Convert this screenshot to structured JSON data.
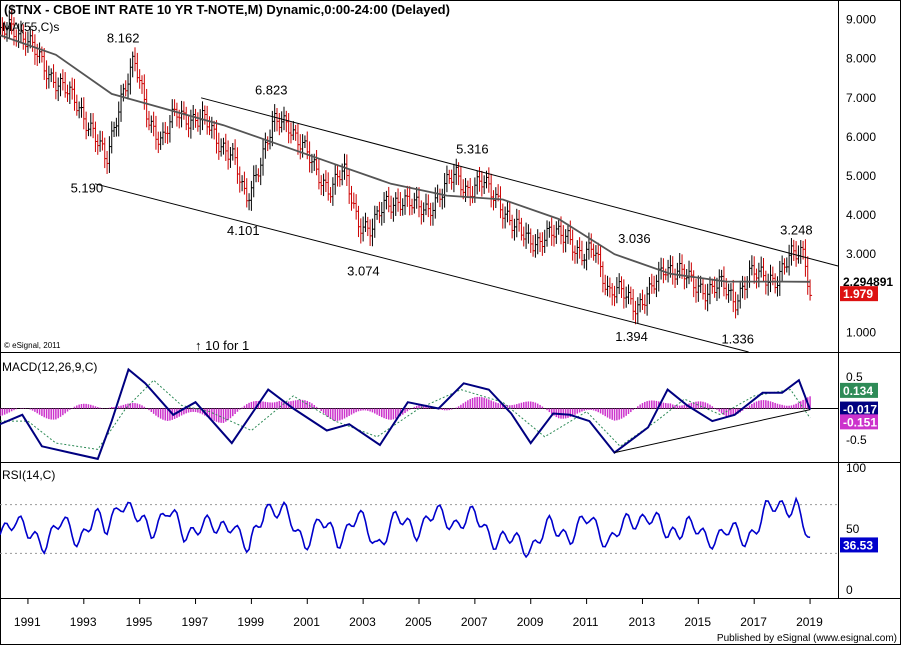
{
  "title": "($TNX - CBOE INT RATE 10 YR T-NOTE,M) Dynamic,0:00-24:00 (Delayed)",
  "ma_label": "MA(55,C)s",
  "copyright": "© eSignal, 2011",
  "split_note": "↑ 10 for 1",
  "footer": "Published by eSignal (www.esignal.com)",
  "colors": {
    "up": "#000000",
    "down": "#cc0000",
    "ma": "#555555",
    "macd": "#000080",
    "signal": "#2e8b57",
    "hist": "#cc33cc",
    "rsi": "#0000cc"
  },
  "chart_data": [
    {
      "type": "line",
      "name": "price",
      "title": "($TNX - CBOE INT RATE 10 YR T-NOTE,M) Dynamic,0:00-24:00 (Delayed)",
      "ylim": [
        0.5,
        9.5
      ],
      "yticks": [
        "9.000",
        "8.000",
        "7.000",
        "6.000",
        "5.000",
        "4.000",
        "3.000",
        "2.000",
        "1.000"
      ],
      "xlim": [
        1990.0,
        2020.0
      ],
      "xticks": [
        "1991",
        "1993",
        "1995",
        "1997",
        "1999",
        "2001",
        "2003",
        "2005",
        "2007",
        "2009",
        "2011",
        "2013",
        "2015",
        "2017",
        "2019"
      ],
      "series": [
        {
          "name": "Close",
          "x": [
            1990.0,
            1990.3,
            1990.8,
            1991.3,
            1991.8,
            1992.3,
            1992.8,
            1993.3,
            1993.8,
            1994.3,
            1994.8,
            1995.3,
            1995.8,
            1996.3,
            1996.8,
            1997.3,
            1997.8,
            1998.3,
            1998.8,
            1999.3,
            1999.8,
            2000.3,
            2000.8,
            2001.3,
            2001.8,
            2002.3,
            2002.8,
            2003.3,
            2003.8,
            2004.3,
            2004.8,
            2005.3,
            2005.8,
            2006.3,
            2006.8,
            2007.3,
            2007.8,
            2008.3,
            2008.8,
            2009.3,
            2009.8,
            2010.3,
            2010.8,
            2011.3,
            2011.8,
            2012.3,
            2012.8,
            2013.3,
            2013.8,
            2014.3,
            2014.8,
            2015.3,
            2015.8,
            2016.3,
            2016.8,
            2017.3,
            2017.8,
            2018.3,
            2018.8,
            2019.0
          ],
          "values": [
            8.5,
            8.9,
            8.6,
            8.1,
            7.6,
            7.2,
            6.8,
            6.2,
            5.3,
            7.0,
            7.9,
            6.5,
            5.9,
            6.6,
            6.5,
            6.4,
            5.9,
            5.6,
            4.3,
            5.4,
            6.3,
            6.4,
            5.8,
            5.1,
            4.7,
            5.1,
            3.9,
            3.6,
            4.3,
            4.4,
            4.2,
            4.2,
            4.5,
            5.1,
            4.6,
            4.8,
            4.5,
            3.7,
            3.5,
            3.3,
            3.5,
            3.6,
            2.8,
            3.2,
            2.0,
            2.0,
            1.7,
            2.0,
            2.7,
            2.6,
            2.2,
            2.1,
            2.2,
            1.8,
            2.5,
            2.4,
            2.4,
            2.9,
            3.1,
            1.979
          ]
        },
        {
          "name": "MA(55,C)s",
          "x": [
            1990.0,
            1992.0,
            1994.0,
            1996.0,
            1998.0,
            2000.0,
            2002.0,
            2004.0,
            2006.0,
            2008.0,
            2010.0,
            2012.0,
            2014.0,
            2016.0,
            2018.0,
            2019.0
          ],
          "values": [
            8.6,
            8.1,
            7.1,
            6.7,
            6.3,
            5.8,
            5.3,
            4.8,
            4.5,
            4.4,
            3.9,
            3.0,
            2.5,
            2.3,
            2.3,
            2.294891
          ]
        },
        {
          "name": "Channel upper",
          "x": [
            1997.2,
            2020.0
          ],
          "values": [
            7.0,
            2.7
          ]
        },
        {
          "name": "Channel lower",
          "x": [
            1993.4,
            2016.8
          ],
          "values": [
            4.8,
            0.5
          ]
        }
      ],
      "annotations": [
        {
          "label": "8.162",
          "x": 1994.4,
          "y": 8.162
        },
        {
          "label": "5.190",
          "x": 1993.1,
          "y": 5.19
        },
        {
          "label": "6.823",
          "x": 1999.7,
          "y": 6.823
        },
        {
          "label": "4.101",
          "x": 1998.7,
          "y": 4.101
        },
        {
          "label": "3.074",
          "x": 2003.0,
          "y": 3.074
        },
        {
          "label": "5.316",
          "x": 2006.9,
          "y": 5.316
        },
        {
          "label": "1.394",
          "x": 2012.6,
          "y": 1.394
        },
        {
          "label": "3.036",
          "x": 2012.7,
          "y": 3.036
        },
        {
          "label": "1.336",
          "x": 2016.4,
          "y": 1.336
        },
        {
          "label": "3.248",
          "x": 2018.5,
          "y": 3.248
        }
      ],
      "last_values": {
        "ma": "2.294891",
        "close": "1.979"
      }
    },
    {
      "type": "line",
      "name": "macd",
      "title": "MACD(12,26,9,C)",
      "ylim": [
        -0.85,
        0.85
      ],
      "yticks": [
        "0.5",
        "-0.5"
      ],
      "series": [
        {
          "name": "MACD",
          "x": [
            1990.0,
            1990.8,
            1991.5,
            1992.5,
            1993.5,
            1994.0,
            1994.6,
            1995.2,
            1996.2,
            1997.0,
            1998.3,
            1999.6,
            2000.5,
            2001.7,
            2002.5,
            2003.6,
            2004.6,
            2005.7,
            2006.6,
            2007.5,
            2008.3,
            2009.0,
            2009.8,
            2010.4,
            2011.1,
            2012.0,
            2013.2,
            2013.9,
            2014.6,
            2015.5,
            2016.3,
            2017.3,
            2018.0,
            2018.6,
            2019.0
          ],
          "values": [
            -0.25,
            -0.1,
            -0.6,
            -0.7,
            -0.8,
            -0.2,
            0.62,
            0.4,
            -0.1,
            0.1,
            -0.55,
            0.3,
            0.0,
            -0.35,
            -0.25,
            -0.58,
            0.1,
            0.0,
            0.4,
            0.3,
            -0.08,
            -0.55,
            -0.08,
            -0.1,
            -0.2,
            -0.7,
            -0.3,
            0.3,
            0.05,
            -0.2,
            -0.1,
            0.25,
            0.25,
            0.45,
            -0.017
          ]
        },
        {
          "name": "Signal",
          "x": [
            1990.0,
            1991.0,
            1992.0,
            1993.5,
            1994.5,
            1995.5,
            1996.5,
            1997.5,
            1999.0,
            2000.5,
            2002.0,
            2003.5,
            2005.0,
            2006.5,
            2008.0,
            2009.5,
            2011.0,
            2012.2,
            2013.5,
            2014.5,
            2015.8,
            2017.0,
            2018.3,
            2019.0
          ],
          "values": [
            -0.2,
            -0.2,
            -0.55,
            -0.65,
            0.0,
            0.45,
            0.05,
            -0.05,
            -0.35,
            0.2,
            -0.2,
            -0.45,
            0.0,
            0.3,
            0.1,
            -0.45,
            -0.05,
            -0.6,
            -0.2,
            0.15,
            -0.1,
            0.2,
            0.3,
            -0.151
          ]
        },
        {
          "name": "Trendline",
          "x": [
            2012.0,
            2019.0
          ],
          "values": [
            -0.7,
            -0.017
          ]
        }
      ],
      "histogram": {
        "x": [
          1990.0,
          1992.0,
          1994.0,
          1996.0,
          1998.0,
          2000.0,
          2002.0,
          2004.0,
          2006.0,
          2008.0,
          2010.0,
          2012.0,
          2014.0,
          2016.0,
          2018.0,
          2019.0
        ],
        "values": [
          -0.05,
          -0.1,
          0.1,
          -0.12,
          -0.15,
          0.2,
          -0.12,
          -0.1,
          0.05,
          0.15,
          -0.08,
          -0.12,
          0.15,
          -0.06,
          0.12,
          0.134
        ]
      },
      "last_values": {
        "hist": "0.134",
        "macd": "-0.017",
        "signal": "-0.151"
      }
    },
    {
      "type": "line",
      "name": "rsi",
      "title": "RSI(14,C)",
      "ylim": [
        0,
        100
      ],
      "yticks": [
        "100",
        "50",
        "0"
      ],
      "series": [
        {
          "name": "RSI",
          "x": [
            1990.0,
            1990.5,
            1991.0,
            1991.6,
            1992.2,
            1992.8,
            1993.4,
            1993.8,
            1994.3,
            1994.8,
            1995.4,
            1996.0,
            1996.6,
            1997.2,
            1997.8,
            1998.3,
            1998.9,
            1999.5,
            2000.2,
            2000.9,
            2001.5,
            2002.1,
            2002.8,
            2003.5,
            2004.2,
            2004.9,
            2005.6,
            2006.3,
            2007.0,
            2007.7,
            2008.4,
            2009.0,
            2009.7,
            2010.4,
            2011.1,
            2011.8,
            2012.5,
            2013.2,
            2013.9,
            2014.6,
            2015.3,
            2016.0,
            2016.7,
            2017.4,
            2018.1,
            2018.5,
            2019.0
          ],
          "values": [
            50,
            58,
            45,
            40,
            55,
            42,
            60,
            48,
            75,
            60,
            50,
            65,
            45,
            55,
            48,
            58,
            30,
            70,
            62,
            40,
            55,
            42,
            60,
            38,
            58,
            50,
            62,
            55,
            60,
            42,
            40,
            35,
            52,
            45,
            58,
            40,
            55,
            62,
            45,
            55,
            40,
            50,
            40,
            65,
            68,
            72,
            36.53
          ]
        }
      ],
      "last_values": {
        "rsi": "36.53"
      }
    }
  ]
}
